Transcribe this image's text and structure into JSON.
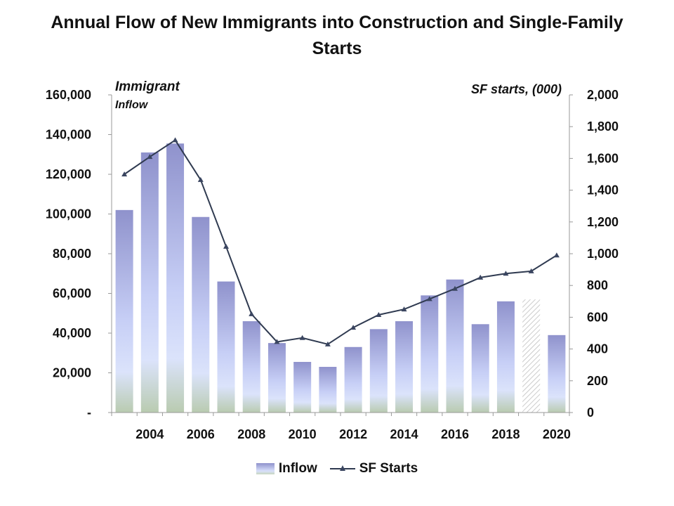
{
  "chart_data": {
    "type": "bar+line",
    "title": "Annual Flow of New Immigrants into Construction and Single-Family Starts",
    "left_axis_label": [
      "Immigrant",
      "Inflow"
    ],
    "right_axis_label": "SF starts, (000)",
    "x": [
      2003,
      2004,
      2005,
      2006,
      2007,
      2008,
      2009,
      2010,
      2011,
      2012,
      2013,
      2014,
      2015,
      2016,
      2017,
      2018,
      2019,
      2020
    ],
    "x_tick_labels": [
      "2004",
      "2006",
      "2008",
      "2010",
      "2012",
      "2014",
      "2016",
      "2018",
      "2020"
    ],
    "x_tick_years": [
      2004,
      2006,
      2008,
      2010,
      2012,
      2014,
      2016,
      2018,
      2020
    ],
    "y_left_ticks": [
      "-",
      "20,000",
      "40,000",
      "60,000",
      "80,000",
      "100,000",
      "120,000",
      "140,000",
      "160,000"
    ],
    "y_left_range": [
      0,
      160000
    ],
    "y_right_ticks": [
      "0",
      "200",
      "400",
      "600",
      "800",
      "1,000",
      "1,200",
      "1,400",
      "1,600",
      "1,800",
      "2,000"
    ],
    "y_right_range": [
      0,
      2000
    ],
    "series": [
      {
        "name": "Inflow",
        "type": "bar",
        "axis": "left",
        "values": [
          102000,
          131000,
          135500,
          98500,
          66000,
          46000,
          35000,
          25500,
          23000,
          33000,
          42000,
          46000,
          59000,
          67000,
          44500,
          56000,
          57000,
          39000
        ],
        "hatched_years": [
          2019
        ]
      },
      {
        "name": "SF Starts",
        "type": "line",
        "axis": "right",
        "values": [
          1500,
          1610,
          1715,
          1465,
          1045,
          620,
          445,
          470,
          430,
          535,
          615,
          650,
          715,
          780,
          850,
          875,
          890,
          990
        ]
      }
    ],
    "legend_position": "bottom",
    "colors": {
      "bar_top": "#8f92cc",
      "bar_mid": "#d8e0fb",
      "bar_bottom": "#c8d7bf",
      "line": "#2f3a50",
      "marker": "#3a4560"
    }
  }
}
